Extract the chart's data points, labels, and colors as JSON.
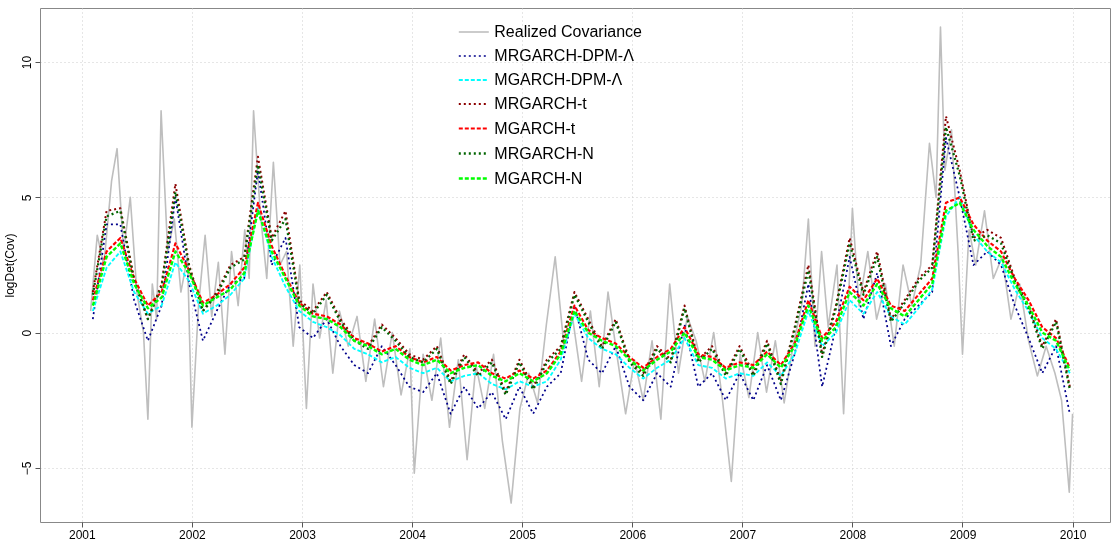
{
  "chart_data": {
    "type": "line",
    "ylabel": "logDet(Cov)",
    "xlim": [
      2000.62,
      2010.34
    ],
    "xticks": [
      2001,
      2002,
      2003,
      2004,
      2005,
      2006,
      2007,
      2008,
      2009,
      2010
    ],
    "ylim": [
      -7,
      12
    ],
    "yticks": [
      -5,
      0,
      5,
      10
    ],
    "grid": true,
    "legend": "top",
    "x": [
      2001.1,
      2001.225,
      2001.35,
      2001.475,
      2001.6,
      2001.725,
      2001.85,
      2001.975,
      2002.1,
      2002.225,
      2002.35,
      2002.475,
      2002.6,
      2002.725,
      2002.85,
      2002.975,
      2003.1,
      2003.225,
      2003.35,
      2003.475,
      2003.6,
      2003.725,
      2003.85,
      2003.975,
      2004.1,
      2004.225,
      2004.35,
      2004.475,
      2004.6,
      2004.725,
      2004.85,
      2004.975,
      2005.1,
      2005.225,
      2005.35,
      2005.475,
      2005.6,
      2005.725,
      2005.85,
      2005.975,
      2006.1,
      2006.225,
      2006.35,
      2006.475,
      2006.6,
      2006.725,
      2006.85,
      2006.975,
      2007.1,
      2007.225,
      2007.35,
      2007.475,
      2007.6,
      2007.725,
      2007.85,
      2007.975,
      2008.1,
      2008.225,
      2008.35,
      2008.475,
      2008.6,
      2008.725,
      2008.85,
      2008.975,
      2009.1,
      2009.225,
      2009.35,
      2009.475,
      2009.6,
      2009.725,
      2009.85,
      2009.975
    ],
    "series": [
      {
        "name": "Realized Covariance",
        "color": "#bebebe",
        "line_style": "solid",
        "x": [
          2001.08,
          2001.14,
          2001.2,
          2001.27,
          2001.32,
          2001.38,
          2001.44,
          2001.5,
          2001.56,
          2001.6,
          2001.64,
          2001.68,
          2001.72,
          2001.78,
          2001.84,
          2001.9,
          2001.96,
          2002.0,
          2002.06,
          2002.12,
          2002.18,
          2002.24,
          2002.3,
          2002.36,
          2002.42,
          2002.48,
          2002.52,
          2002.56,
          2002.62,
          2002.68,
          2002.74,
          2002.8,
          2002.86,
          2002.92,
          2002.98,
          2003.04,
          2003.1,
          2003.16,
          2003.22,
          2003.28,
          2003.34,
          2003.42,
          2003.5,
          2003.58,
          2003.66,
          2003.74,
          2003.82,
          2003.9,
          2003.98,
          2004.02,
          2004.1,
          2004.18,
          2004.26,
          2004.34,
          2004.42,
          2004.5,
          2004.58,
          2004.66,
          2004.74,
          2004.82,
          2004.9,
          2004.98,
          2005.06,
          2005.14,
          2005.22,
          2005.3,
          2005.38,
          2005.46,
          2005.54,
          2005.62,
          2005.7,
          2005.78,
          2005.86,
          2005.94,
          2006.02,
          2006.1,
          2006.18,
          2006.26,
          2006.34,
          2006.42,
          2006.5,
          2006.58,
          2006.66,
          2006.74,
          2006.82,
          2006.9,
          2006.98,
          2007.06,
          2007.14,
          2007.22,
          2007.3,
          2007.38,
          2007.46,
          2007.54,
          2007.6,
          2007.66,
          2007.72,
          2007.78,
          2007.86,
          2007.92,
          2008.0,
          2008.06,
          2008.14,
          2008.22,
          2008.3,
          2008.38,
          2008.46,
          2008.54,
          2008.62,
          2008.7,
          2008.76,
          2008.8,
          2008.84,
          2008.9,
          2008.96,
          2009.0,
          2009.06,
          2009.12,
          2009.2,
          2009.28,
          2009.36,
          2009.44,
          2009.52,
          2009.6,
          2009.68,
          2009.76,
          2009.84,
          2009.9,
          2009.97,
          2010.0
        ],
        "values": [
          0.8,
          3.6,
          2.5,
          5.6,
          6.8,
          3.0,
          5.0,
          1.5,
          0.0,
          -3.2,
          1.8,
          0.5,
          8.2,
          3.0,
          4.2,
          1.5,
          2.8,
          -3.5,
          1.0,
          3.6,
          0.6,
          2.6,
          -0.8,
          3.0,
          1.0,
          3.8,
          2.0,
          8.2,
          4.5,
          2.0,
          6.3,
          2.5,
          3.0,
          -0.5,
          2.5,
          -2.8,
          1.8,
          -0.2,
          1.2,
          -1.5,
          0.8,
          -0.5,
          0.6,
          -1.8,
          0.5,
          -2.0,
          0.0,
          -2.3,
          -0.6,
          -5.2,
          -0.8,
          -2.5,
          -0.2,
          -3.5,
          -1.0,
          -4.7,
          -1.2,
          -2.8,
          -0.8,
          -4.0,
          -6.3,
          -2.8,
          -1.5,
          -2.6,
          0.3,
          2.8,
          -0.5,
          0.5,
          -1.8,
          0.8,
          -2.0,
          1.5,
          -0.8,
          -3.0,
          -1.0,
          -2.5,
          -0.3,
          -3.2,
          1.8,
          -1.5,
          0.6,
          -0.3,
          -1.8,
          0.0,
          -2.5,
          -5.5,
          -0.8,
          -2.4,
          0.0,
          -2.2,
          -0.3,
          -2.6,
          -0.5,
          1.0,
          4.2,
          -0.5,
          3.0,
          0.2,
          2.5,
          -3.0,
          4.6,
          1.0,
          3.0,
          0.5,
          1.8,
          -0.5,
          2.5,
          1.0,
          2.5,
          7.0,
          5.0,
          11.3,
          6.0,
          7.5,
          3.0,
          -0.8,
          3.8,
          2.5,
          4.5,
          2.0,
          2.8,
          0.5,
          1.8,
          -0.3,
          -1.6,
          -0.5,
          -1.5,
          -2.5,
          -5.9,
          -3.0
        ]
      },
      {
        "name": "MRGARCH-DPM-Λ",
        "color": "#00008b",
        "line_style": "dotted",
        "values": [
          0.5,
          4.0,
          4.0,
          1.2,
          -0.3,
          1.0,
          5.0,
          1.8,
          -0.3,
          0.8,
          1.8,
          2.0,
          6.0,
          2.5,
          3.5,
          0.2,
          -0.2,
          0.5,
          -0.5,
          -1.2,
          -1.5,
          -0.5,
          -1.2,
          -2.0,
          -2.2,
          -1.5,
          -3.0,
          -2.0,
          -2.8,
          -2.2,
          -3.2,
          -2.0,
          -3.0,
          -2.0,
          -1.5,
          1.0,
          -1.0,
          -1.5,
          -0.5,
          -2.0,
          -2.5,
          -1.5,
          -2.0,
          0.3,
          -2.0,
          -1.5,
          -2.5,
          -1.5,
          -2.5,
          -1.2,
          -2.5,
          -0.8,
          1.8,
          -2.0,
          0.2,
          2.8,
          0.5,
          2.2,
          -0.5,
          0.5,
          1.0,
          1.5,
          7.2,
          5.0,
          2.5,
          3.0,
          2.5,
          1.0,
          -0.2,
          -1.5,
          -0.5,
          -3.0
        ]
      },
      {
        "name": "MGARCH-DPM-Λ",
        "color": "#00ffff",
        "line_style": "dashed",
        "values": [
          0.8,
          2.4,
          3.0,
          1.5,
          0.7,
          1.0,
          2.6,
          1.9,
          0.7,
          1.0,
          1.4,
          2.0,
          4.6,
          2.8,
          1.7,
          0.8,
          0.4,
          0.2,
          -0.1,
          -0.6,
          -0.8,
          -1.1,
          -0.9,
          -1.3,
          -1.5,
          -1.3,
          -1.8,
          -1.6,
          -1.5,
          -1.9,
          -2.1,
          -1.8,
          -2.0,
          -1.8,
          -1.0,
          0.7,
          -0.2,
          -0.6,
          -0.8,
          -1.3,
          -1.7,
          -1.3,
          -1.0,
          -0.2,
          -1.2,
          -1.3,
          -1.7,
          -1.5,
          -1.6,
          -1.1,
          -1.6,
          -0.8,
          0.8,
          -0.5,
          0.0,
          1.2,
          0.7,
          1.5,
          0.6,
          0.3,
          0.9,
          1.6,
          4.3,
          5.0,
          3.6,
          3.0,
          2.6,
          1.6,
          0.8,
          -0.2,
          -0.6,
          -1.5
        ]
      },
      {
        "name": "MRGARCH-t",
        "color": "#8b0000",
        "line_style": "dotted",
        "values": [
          1.5,
          4.5,
          4.6,
          2.0,
          0.5,
          1.8,
          5.5,
          2.5,
          0.8,
          1.5,
          2.5,
          2.8,
          6.5,
          3.5,
          4.5,
          1.2,
          0.8,
          1.5,
          0.5,
          -0.2,
          -0.5,
          0.3,
          -0.2,
          -0.8,
          -1.0,
          -0.5,
          -1.8,
          -0.8,
          -1.5,
          -1.0,
          -2.2,
          -1.0,
          -2.0,
          -1.0,
          -0.5,
          1.5,
          0.5,
          -0.5,
          0.5,
          -1.0,
          -1.5,
          -0.5,
          -1.0,
          1.0,
          -1.0,
          -0.5,
          -1.5,
          -0.5,
          -1.5,
          -0.3,
          -1.8,
          0.2,
          2.5,
          -0.8,
          1.0,
          3.5,
          1.5,
          3.0,
          0.5,
          1.2,
          2.0,
          2.5,
          8.0,
          6.0,
          3.5,
          3.8,
          3.5,
          2.0,
          1.0,
          -0.5,
          0.5,
          -2.0
        ]
      },
      {
        "name": "MGARCH-t",
        "color": "#ff0000",
        "line_style": "dashed",
        "values": [
          1.2,
          3.0,
          3.5,
          2.0,
          1.0,
          1.5,
          3.3,
          2.3,
          1.1,
          1.4,
          1.8,
          2.4,
          4.8,
          3.2,
          2.1,
          1.1,
          0.7,
          0.6,
          0.3,
          -0.2,
          -0.4,
          -0.7,
          -0.5,
          -0.9,
          -1.1,
          -0.9,
          -1.4,
          -1.2,
          -1.1,
          -1.5,
          -1.7,
          -1.4,
          -1.7,
          -1.4,
          -0.7,
          1.0,
          0.1,
          -0.2,
          -0.4,
          -0.9,
          -1.3,
          -0.9,
          -0.6,
          0.2,
          -0.8,
          -0.9,
          -1.3,
          -1.1,
          -1.2,
          -0.7,
          -1.2,
          -0.4,
          1.2,
          -0.2,
          0.4,
          1.7,
          1.2,
          2.0,
          1.0,
          0.8,
          1.4,
          2.0,
          4.8,
          5.0,
          4.0,
          3.4,
          3.0,
          2.0,
          1.2,
          0.2,
          -0.2,
          -1.3
        ]
      },
      {
        "name": "MRGARCH-N",
        "color": "#006400",
        "line_style": "dotted",
        "values": [
          1.4,
          4.3,
          4.5,
          1.9,
          0.5,
          1.7,
          5.2,
          2.4,
          0.8,
          1.4,
          2.4,
          2.7,
          6.2,
          3.4,
          4.2,
          1.1,
          0.7,
          1.4,
          0.4,
          -0.3,
          -0.6,
          0.2,
          -0.3,
          -0.9,
          -1.1,
          -0.6,
          -1.9,
          -0.9,
          -1.6,
          -1.1,
          -2.3,
          -1.1,
          -2.1,
          -1.1,
          -0.6,
          1.4,
          0.4,
          -0.6,
          0.4,
          -1.1,
          -1.6,
          -0.6,
          -1.1,
          0.9,
          -1.1,
          -0.6,
          -1.6,
          -0.6,
          -1.6,
          -0.4,
          -1.9,
          0.1,
          2.3,
          -0.9,
          0.9,
          3.3,
          1.4,
          2.8,
          0.4,
          1.1,
          1.9,
          2.4,
          7.6,
          5.8,
          3.4,
          3.6,
          3.3,
          1.9,
          0.9,
          -0.6,
          0.4,
          -2.1
        ]
      },
      {
        "name": "MGARCH-N",
        "color": "#00ff00",
        "line_style": "dashed",
        "values": [
          1.0,
          2.8,
          3.3,
          1.8,
          0.9,
          1.3,
          3.0,
          2.2,
          1.0,
          1.3,
          1.6,
          2.2,
          4.5,
          3.0,
          2.0,
          1.0,
          0.6,
          0.5,
          0.2,
          -0.3,
          -0.5,
          -0.8,
          -0.6,
          -1.0,
          -1.2,
          -1.0,
          -1.5,
          -1.3,
          -1.2,
          -1.6,
          -1.8,
          -1.5,
          -1.8,
          -1.5,
          -0.8,
          0.8,
          0.0,
          -0.3,
          -0.5,
          -1.0,
          -1.4,
          -1.0,
          -0.7,
          0.0,
          -0.9,
          -1.0,
          -1.4,
          -1.2,
          -1.3,
          -0.8,
          -1.3,
          -0.5,
          1.0,
          -0.3,
          0.2,
          1.5,
          1.0,
          1.8,
          0.9,
          0.6,
          1.2,
          1.8,
          4.5,
          4.8,
          3.8,
          3.2,
          2.8,
          1.8,
          1.0,
          0.0,
          -0.3,
          -1.4
        ]
      }
    ]
  }
}
